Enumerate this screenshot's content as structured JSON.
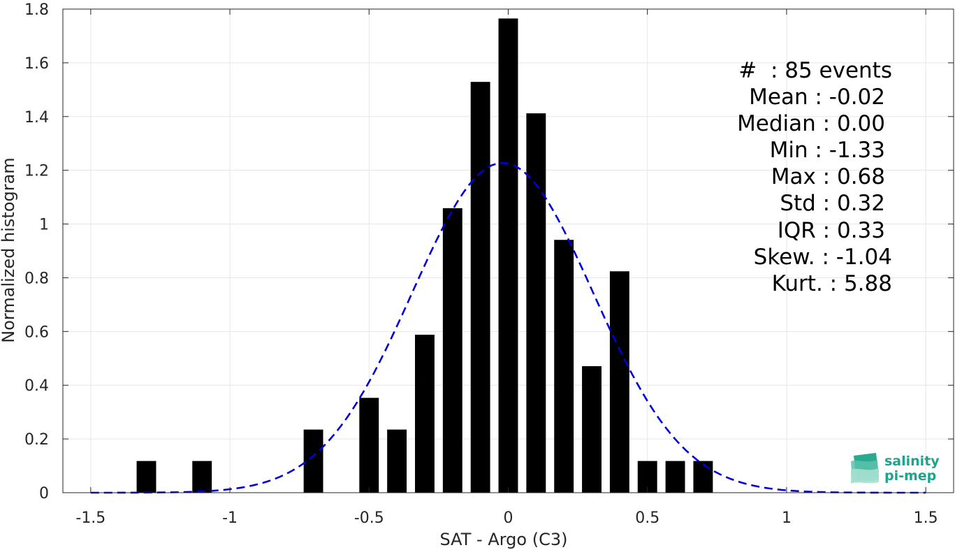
{
  "chart_data": {
    "type": "bar",
    "xlabel": "SAT - Argo (C3)",
    "ylabel": "Normalized histogram",
    "xlim": [
      -1.6,
      1.6
    ],
    "ylim": [
      0,
      1.8
    ],
    "xticks": [
      -1.5,
      -1,
      -0.5,
      0,
      0.5,
      1,
      1.5
    ],
    "xtick_labels": [
      "-1.5",
      "-1",
      "-0.5",
      "0",
      "0.5",
      "1",
      "1.5"
    ],
    "yticks": [
      0,
      0.2,
      0.4,
      0.6,
      0.8,
      1,
      1.2,
      1.4,
      1.6,
      1.8
    ],
    "ytick_labels": [
      "0",
      "0.2",
      "0.4",
      "0.6",
      "0.8",
      "1",
      "1.2",
      "1.4",
      "1.6",
      "1.8"
    ],
    "grid": true,
    "bin_width": 0.1,
    "bars": [
      {
        "x": -1.3,
        "value": 0.118
      },
      {
        "x": -1.1,
        "value": 0.118
      },
      {
        "x": -0.7,
        "value": 0.235
      },
      {
        "x": -0.5,
        "value": 0.353
      },
      {
        "x": -0.4,
        "value": 0.235
      },
      {
        "x": -0.3,
        "value": 0.588
      },
      {
        "x": -0.2,
        "value": 1.059
      },
      {
        "x": -0.1,
        "value": 1.529
      },
      {
        "x": 0.0,
        "value": 1.765
      },
      {
        "x": 0.1,
        "value": 1.412
      },
      {
        "x": 0.2,
        "value": 0.941
      },
      {
        "x": 0.3,
        "value": 0.471
      },
      {
        "x": 0.4,
        "value": 0.824
      },
      {
        "x": 0.5,
        "value": 0.118
      },
      {
        "x": 0.6,
        "value": 0.118
      },
      {
        "x": 0.7,
        "value": 0.118
      }
    ],
    "fit_curve": {
      "style": "dashed",
      "color": "#0000dd",
      "mean": -0.02,
      "std": 0.325,
      "x_range": [
        -1.5,
        1.5
      ]
    },
    "bar_color": "#000000"
  },
  "stats": {
    "lines": [
      "#  : 85 events",
      "Mean : -0.02",
      "Median : 0.00",
      "Min : -1.33",
      "Max : 0.68",
      "Std : 0.32",
      "IQR : 0.33",
      "Skew. : -1.04",
      "Kurt. : 5.88"
    ]
  },
  "logo": {
    "line1": "salinity",
    "line2": "pi-mep"
  }
}
